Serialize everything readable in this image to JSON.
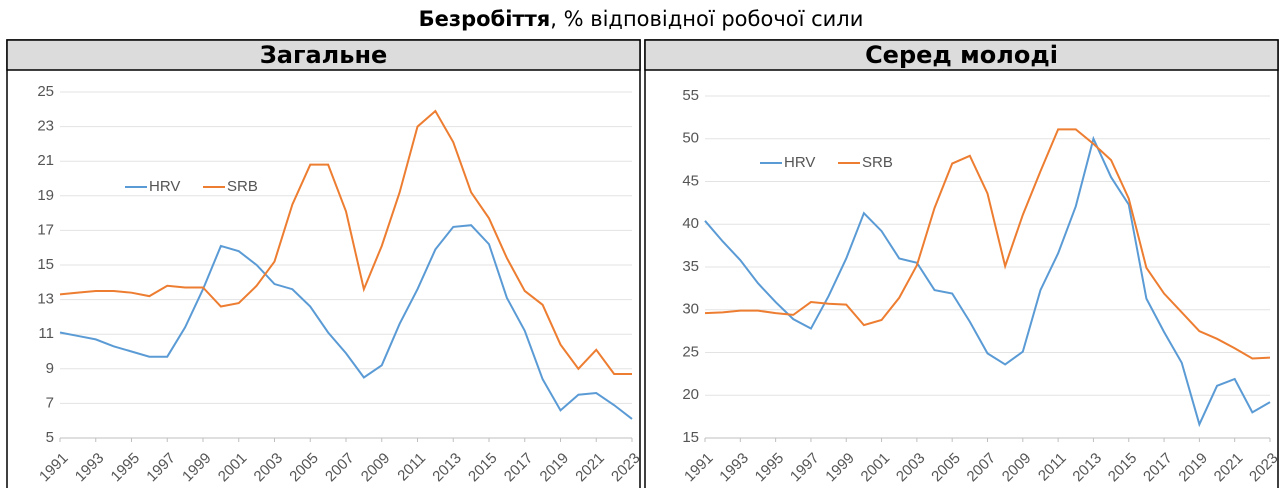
{
  "title": {
    "bold": "Безробіття",
    "rest": ", % відповідної робочої сили"
  },
  "chart_data": [
    {
      "type": "line",
      "title": "Загальне",
      "x": [
        1991,
        1992,
        1993,
        1994,
        1995,
        1996,
        1997,
        1998,
        1999,
        2000,
        2001,
        2002,
        2003,
        2004,
        2005,
        2006,
        2007,
        2008,
        2009,
        2010,
        2011,
        2012,
        2013,
        2014,
        2015,
        2016,
        2017,
        2018,
        2019,
        2020,
        2021,
        2022,
        2023
      ],
      "xlim": [
        1991,
        2023
      ],
      "xticks": [
        1991,
        1993,
        1995,
        1997,
        1999,
        2001,
        2003,
        2005,
        2007,
        2009,
        2011,
        2013,
        2015,
        2017,
        2019,
        2021,
        2023
      ],
      "ylim": [
        5,
        25
      ],
      "yticks": [
        5,
        7,
        9,
        11,
        13,
        15,
        17,
        19,
        21,
        23,
        25
      ],
      "grid": true,
      "legend": "upper left",
      "series": [
        {
          "name": "HRV",
          "color": "#5b9bd5",
          "values": [
            11.1,
            10.9,
            10.7,
            10.3,
            10.0,
            9.7,
            9.7,
            11.4,
            13.6,
            16.1,
            15.8,
            15.0,
            13.9,
            13.6,
            12.6,
            11.1,
            9.9,
            8.5,
            9.2,
            11.6,
            13.6,
            15.9,
            17.2,
            17.3,
            16.2,
            13.1,
            11.2,
            8.4,
            6.6,
            7.5,
            7.6,
            6.9,
            6.1
          ]
        },
        {
          "name": "SRB",
          "color": "#ed7d31",
          "values": [
            13.3,
            13.4,
            13.5,
            13.5,
            13.4,
            13.2,
            13.8,
            13.7,
            13.7,
            12.6,
            12.8,
            13.8,
            15.2,
            18.5,
            20.8,
            20.8,
            18.1,
            13.6,
            16.1,
            19.2,
            23.0,
            23.9,
            22.1,
            19.2,
            17.7,
            15.4,
            13.5,
            12.7,
            10.4,
            9.0,
            10.1,
            8.7,
            8.7
          ]
        }
      ]
    },
    {
      "type": "line",
      "title": "Серед молоді",
      "x": [
        1991,
        1992,
        1993,
        1994,
        1995,
        1996,
        1997,
        1998,
        1999,
        2000,
        2001,
        2002,
        2003,
        2004,
        2005,
        2006,
        2007,
        2008,
        2009,
        2010,
        2011,
        2012,
        2013,
        2014,
        2015,
        2016,
        2017,
        2018,
        2019,
        2020,
        2021,
        2022,
        2023
      ],
      "xlim": [
        1991,
        2023
      ],
      "xticks": [
        1991,
        1993,
        1995,
        1997,
        1999,
        2001,
        2003,
        2005,
        2007,
        2009,
        2011,
        2013,
        2015,
        2017,
        2019,
        2021,
        2023
      ],
      "ylim": [
        15,
        55
      ],
      "yticks": [
        15,
        20,
        25,
        30,
        35,
        40,
        45,
        50,
        55
      ],
      "grid": true,
      "legend": "upper left",
      "series": [
        {
          "name": "HRV",
          "color": "#5b9bd5",
          "values": [
            40.4,
            38.0,
            35.8,
            33.1,
            30.9,
            28.9,
            27.8,
            31.6,
            36.0,
            41.3,
            39.2,
            36.0,
            35.5,
            32.3,
            31.9,
            28.6,
            24.9,
            23.6,
            25.1,
            32.3,
            36.6,
            42.1,
            50.0,
            45.5,
            42.3,
            31.3,
            27.4,
            23.8,
            16.6,
            21.1,
            21.9,
            18.0,
            19.2
          ]
        },
        {
          "name": "SRB",
          "color": "#ed7d31",
          "values": [
            29.6,
            29.7,
            29.9,
            29.9,
            29.6,
            29.4,
            30.9,
            30.7,
            30.6,
            28.2,
            28.8,
            31.4,
            35.2,
            41.9,
            47.1,
            48.0,
            43.6,
            35.1,
            41.1,
            46.2,
            51.1,
            51.1,
            49.4,
            47.5,
            43.0,
            34.9,
            31.9,
            29.7,
            27.5,
            26.6,
            25.5,
            24.3,
            24.4
          ]
        }
      ]
    }
  ]
}
